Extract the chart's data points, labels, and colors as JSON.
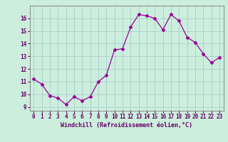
{
  "x": [
    0,
    1,
    2,
    3,
    4,
    5,
    6,
    7,
    8,
    9,
    10,
    11,
    12,
    13,
    14,
    15,
    16,
    17,
    18,
    19,
    20,
    21,
    22,
    23
  ],
  "y": [
    11.2,
    10.8,
    9.9,
    9.7,
    9.2,
    9.8,
    9.5,
    9.8,
    11.0,
    11.5,
    13.5,
    13.6,
    15.3,
    16.3,
    16.2,
    16.0,
    15.1,
    16.3,
    15.8,
    14.5,
    14.1,
    13.2,
    12.5,
    12.9
  ],
  "line_color": "#990099",
  "marker": "D",
  "marker_size": 2.5,
  "bg_color": "#cceedd",
  "grid_color": "#aacccc",
  "xlabel": "Windchill (Refroidissement éolien,°C)",
  "xlabel_color": "#660066",
  "tick_color": "#660066",
  "ylim_min": 8.7,
  "ylim_max": 17.0,
  "xlim_min": -0.5,
  "xlim_max": 23.5,
  "yticks": [
    9,
    10,
    11,
    12,
    13,
    14,
    15,
    16
  ],
  "xticks": [
    0,
    1,
    2,
    3,
    4,
    5,
    6,
    7,
    8,
    9,
    10,
    11,
    12,
    13,
    14,
    15,
    16,
    17,
    18,
    19,
    20,
    21,
    22,
    23
  ],
  "tick_fontsize": 5.5,
  "xlabel_fontsize": 6.0,
  "spine_color": "#888888"
}
